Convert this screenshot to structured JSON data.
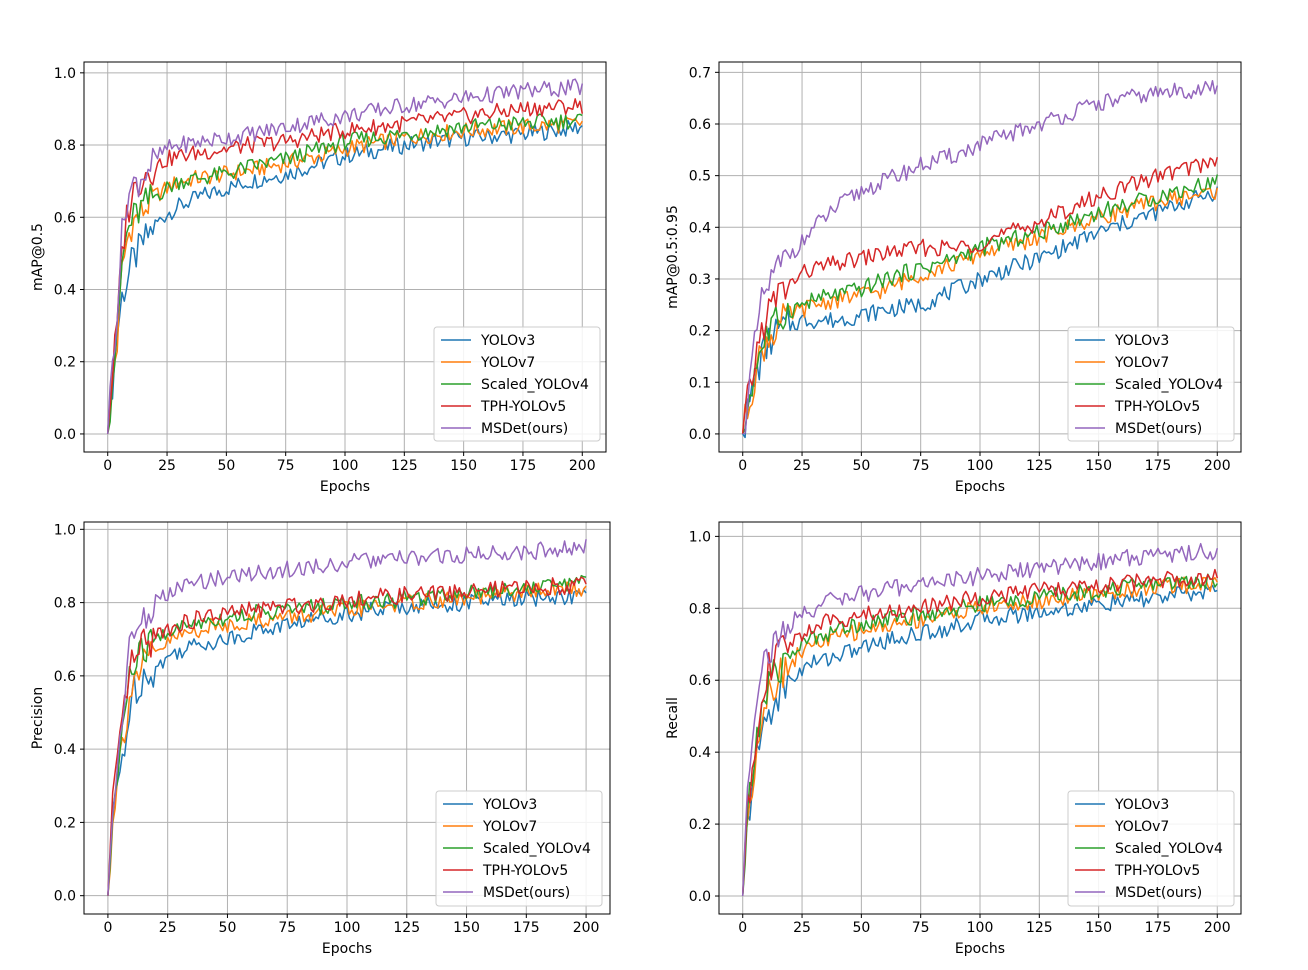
{
  "colors": {
    "YOLOv3": "#1f77b4",
    "YOLOv7": "#ff7f0e",
    "Scaled_YOLOv4": "#2ca02c",
    "TPH-YOLOv5": "#d62728",
    "MSDet(ours)": "#9467bd"
  },
  "chart_data": [
    {
      "type": "line",
      "id": "map50",
      "xlabel": "Epochs",
      "ylabel": "mAP@0.5",
      "xlim": [
        -10,
        210
      ],
      "ylim": [
        -0.05,
        1.03
      ],
      "xticks": [
        0,
        25,
        50,
        75,
        100,
        125,
        150,
        175,
        200
      ],
      "yticks": [
        "0.0",
        "0.2",
        "0.4",
        "0.6",
        "0.8",
        "1.0"
      ],
      "grid": true,
      "legend": "lower-right",
      "series": [
        {
          "name": "YOLOv3",
          "x": [
            0,
            2,
            4,
            6,
            8,
            10,
            15,
            20,
            25,
            30,
            40,
            50,
            60,
            75,
            90,
            100,
            125,
            150,
            175,
            200
          ],
          "values": [
            0.0,
            0.14,
            0.28,
            0.38,
            0.42,
            0.47,
            0.53,
            0.58,
            0.61,
            0.63,
            0.66,
            0.68,
            0.7,
            0.72,
            0.75,
            0.77,
            0.8,
            0.82,
            0.83,
            0.85
          ]
        },
        {
          "name": "YOLOv7",
          "x": [
            0,
            2,
            4,
            6,
            8,
            10,
            15,
            20,
            25,
            30,
            40,
            50,
            60,
            75,
            90,
            100,
            125,
            150,
            175,
            200
          ],
          "values": [
            0.0,
            0.16,
            0.25,
            0.45,
            0.53,
            0.58,
            0.62,
            0.66,
            0.68,
            0.7,
            0.71,
            0.72,
            0.73,
            0.75,
            0.77,
            0.79,
            0.82,
            0.84,
            0.85,
            0.86
          ]
        },
        {
          "name": "Scaled_YOLOv4",
          "x": [
            0,
            2,
            4,
            6,
            8,
            10,
            15,
            20,
            25,
            30,
            40,
            50,
            60,
            75,
            90,
            100,
            125,
            150,
            175,
            200
          ],
          "values": [
            0.0,
            0.15,
            0.27,
            0.47,
            0.55,
            0.59,
            0.63,
            0.66,
            0.68,
            0.7,
            0.71,
            0.72,
            0.74,
            0.76,
            0.79,
            0.81,
            0.83,
            0.85,
            0.86,
            0.87
          ]
        },
        {
          "name": "TPH-YOLOv5",
          "x": [
            0,
            2,
            4,
            6,
            8,
            10,
            15,
            20,
            25,
            30,
            40,
            50,
            60,
            75,
            90,
            100,
            125,
            150,
            175,
            200
          ],
          "values": [
            0.0,
            0.17,
            0.3,
            0.5,
            0.6,
            0.66,
            0.72,
            0.74,
            0.76,
            0.77,
            0.78,
            0.79,
            0.8,
            0.81,
            0.83,
            0.84,
            0.86,
            0.88,
            0.9,
            0.91
          ]
        },
        {
          "name": "MSDet(ours)",
          "x": [
            0,
            2,
            4,
            6,
            8,
            10,
            15,
            20,
            25,
            30,
            40,
            50,
            60,
            75,
            90,
            100,
            125,
            150,
            175,
            200
          ],
          "values": [
            0.0,
            0.2,
            0.35,
            0.55,
            0.65,
            0.68,
            0.72,
            0.76,
            0.79,
            0.8,
            0.81,
            0.82,
            0.83,
            0.85,
            0.87,
            0.88,
            0.91,
            0.93,
            0.95,
            0.96
          ]
        }
      ]
    },
    {
      "type": "line",
      "id": "map5095",
      "xlabel": "Epochs",
      "ylabel": "mAP@0.5:0.95",
      "xlim": [
        -10,
        210
      ],
      "ylim": [
        -0.035,
        0.72
      ],
      "xticks": [
        0,
        25,
        50,
        75,
        100,
        125,
        150,
        175,
        200
      ],
      "yticks": [
        "0.0",
        "0.1",
        "0.2",
        "0.3",
        "0.4",
        "0.5",
        "0.6",
        "0.7"
      ],
      "grid": true,
      "legend": "lower-right",
      "series": [
        {
          "name": "YOLOv3",
          "x": [
            0,
            2,
            4,
            6,
            8,
            10,
            15,
            20,
            25,
            30,
            40,
            50,
            60,
            75,
            90,
            100,
            125,
            150,
            175,
            200
          ],
          "values": [
            0.0,
            0.04,
            0.08,
            0.12,
            0.15,
            0.17,
            0.2,
            0.21,
            0.22,
            0.22,
            0.22,
            0.23,
            0.24,
            0.25,
            0.28,
            0.3,
            0.34,
            0.39,
            0.43,
            0.47
          ]
        },
        {
          "name": "YOLOv7",
          "x": [
            0,
            2,
            4,
            6,
            8,
            10,
            15,
            20,
            25,
            30,
            40,
            50,
            60,
            75,
            90,
            100,
            125,
            150,
            175,
            200
          ],
          "values": [
            0.0,
            0.05,
            0.09,
            0.13,
            0.16,
            0.18,
            0.21,
            0.23,
            0.24,
            0.25,
            0.26,
            0.27,
            0.28,
            0.31,
            0.33,
            0.35,
            0.38,
            0.42,
            0.45,
            0.47
          ]
        },
        {
          "name": "Scaled_YOLOv4",
          "x": [
            0,
            2,
            4,
            6,
            8,
            10,
            15,
            20,
            25,
            30,
            40,
            50,
            60,
            75,
            90,
            100,
            125,
            150,
            175,
            200
          ],
          "values": [
            0.0,
            0.05,
            0.1,
            0.14,
            0.17,
            0.19,
            0.22,
            0.24,
            0.25,
            0.26,
            0.27,
            0.28,
            0.3,
            0.32,
            0.34,
            0.36,
            0.39,
            0.43,
            0.46,
            0.49
          ]
        },
        {
          "name": "TPH-YOLOv5",
          "x": [
            0,
            2,
            4,
            6,
            8,
            10,
            15,
            20,
            25,
            30,
            40,
            50,
            60,
            75,
            90,
            100,
            125,
            150,
            175,
            200
          ],
          "values": [
            0.0,
            0.06,
            0.11,
            0.16,
            0.2,
            0.23,
            0.27,
            0.29,
            0.31,
            0.32,
            0.33,
            0.34,
            0.35,
            0.36,
            0.36,
            0.37,
            0.41,
            0.46,
            0.5,
            0.53
          ]
        },
        {
          "name": "MSDet(ours)",
          "x": [
            0,
            2,
            4,
            6,
            8,
            10,
            15,
            20,
            25,
            30,
            40,
            50,
            60,
            75,
            90,
            100,
            125,
            150,
            175,
            200
          ],
          "values": [
            0.0,
            0.07,
            0.13,
            0.2,
            0.25,
            0.28,
            0.32,
            0.35,
            0.37,
            0.4,
            0.44,
            0.47,
            0.49,
            0.52,
            0.54,
            0.56,
            0.6,
            0.64,
            0.66,
            0.67
          ]
        }
      ]
    },
    {
      "type": "line",
      "id": "precision",
      "xlabel": "Epochs",
      "ylabel": "Precision",
      "xlim": [
        -10,
        210
      ],
      "ylim": [
        -0.05,
        1.02
      ],
      "xticks": [
        0,
        25,
        50,
        75,
        100,
        125,
        150,
        175,
        200
      ],
      "yticks": [
        "0.0",
        "0.2",
        "0.4",
        "0.6",
        "0.8",
        "1.0"
      ],
      "grid": true,
      "legend": "lower-right",
      "series": [
        {
          "name": "YOLOv3",
          "x": [
            0,
            2,
            4,
            6,
            8,
            10,
            15,
            20,
            25,
            30,
            40,
            50,
            60,
            75,
            90,
            100,
            125,
            150,
            175,
            200
          ],
          "values": [
            0.0,
            0.2,
            0.3,
            0.38,
            0.45,
            0.55,
            0.6,
            0.62,
            0.65,
            0.67,
            0.69,
            0.7,
            0.72,
            0.74,
            0.76,
            0.77,
            0.79,
            0.8,
            0.81,
            0.82
          ]
        },
        {
          "name": "YOLOv7",
          "x": [
            0,
            2,
            4,
            6,
            8,
            10,
            15,
            20,
            25,
            30,
            40,
            50,
            60,
            75,
            90,
            100,
            125,
            150,
            175,
            200
          ],
          "values": [
            0.0,
            0.22,
            0.32,
            0.42,
            0.5,
            0.58,
            0.63,
            0.66,
            0.69,
            0.71,
            0.73,
            0.74,
            0.75,
            0.76,
            0.77,
            0.78,
            0.8,
            0.81,
            0.83,
            0.84
          ]
        },
        {
          "name": "Scaled_YOLOv4",
          "x": [
            0,
            2,
            4,
            6,
            8,
            10,
            15,
            20,
            25,
            30,
            40,
            50,
            60,
            75,
            90,
            100,
            125,
            150,
            175,
            200
          ],
          "values": [
            0.0,
            0.21,
            0.33,
            0.45,
            0.55,
            0.62,
            0.67,
            0.7,
            0.72,
            0.73,
            0.75,
            0.76,
            0.77,
            0.78,
            0.79,
            0.8,
            0.81,
            0.83,
            0.84,
            0.86
          ]
        },
        {
          "name": "TPH-YOLOv5",
          "x": [
            0,
            2,
            4,
            6,
            8,
            10,
            15,
            20,
            25,
            30,
            40,
            50,
            60,
            75,
            90,
            100,
            125,
            150,
            175,
            200
          ],
          "values": [
            0.0,
            0.25,
            0.34,
            0.46,
            0.57,
            0.63,
            0.68,
            0.71,
            0.73,
            0.74,
            0.76,
            0.77,
            0.78,
            0.79,
            0.8,
            0.81,
            0.82,
            0.83,
            0.84,
            0.85
          ]
        },
        {
          "name": "MSDet(ours)",
          "x": [
            0,
            2,
            4,
            6,
            8,
            10,
            15,
            20,
            25,
            30,
            40,
            50,
            60,
            75,
            90,
            100,
            125,
            150,
            175,
            200
          ],
          "values": [
            0.0,
            0.24,
            0.35,
            0.5,
            0.63,
            0.7,
            0.76,
            0.8,
            0.82,
            0.84,
            0.86,
            0.87,
            0.88,
            0.89,
            0.9,
            0.91,
            0.92,
            0.93,
            0.94,
            0.95
          ]
        }
      ]
    },
    {
      "type": "line",
      "id": "recall",
      "xlabel": "Epochs",
      "ylabel": "Recall",
      "xlim": [
        -10,
        210
      ],
      "ylim": [
        -0.05,
        1.04
      ],
      "xticks": [
        0,
        25,
        50,
        75,
        100,
        125,
        150,
        175,
        200
      ],
      "yticks": [
        "0.0",
        "0.2",
        "0.4",
        "0.6",
        "0.8",
        "1.0"
      ],
      "grid": true,
      "legend": "lower-right",
      "series": [
        {
          "name": "YOLOv3",
          "x": [
            0,
            2,
            4,
            6,
            8,
            10,
            15,
            20,
            25,
            30,
            40,
            50,
            60,
            75,
            90,
            100,
            125,
            150,
            175,
            200
          ],
          "values": [
            0.0,
            0.2,
            0.3,
            0.38,
            0.45,
            0.5,
            0.55,
            0.6,
            0.63,
            0.65,
            0.67,
            0.69,
            0.71,
            0.73,
            0.75,
            0.77,
            0.79,
            0.81,
            0.83,
            0.85
          ]
        },
        {
          "name": "YOLOv7",
          "x": [
            0,
            2,
            4,
            6,
            8,
            10,
            15,
            20,
            25,
            30,
            40,
            50,
            60,
            75,
            90,
            100,
            125,
            150,
            175,
            200
          ],
          "values": [
            0.0,
            0.22,
            0.32,
            0.42,
            0.5,
            0.56,
            0.61,
            0.65,
            0.68,
            0.7,
            0.72,
            0.74,
            0.75,
            0.77,
            0.79,
            0.8,
            0.82,
            0.84,
            0.86,
            0.87
          ]
        },
        {
          "name": "Scaled_YOLOv4",
          "x": [
            0,
            2,
            4,
            6,
            8,
            10,
            15,
            20,
            25,
            30,
            40,
            50,
            60,
            75,
            90,
            100,
            125,
            150,
            175,
            200
          ],
          "values": [
            0.0,
            0.21,
            0.33,
            0.43,
            0.52,
            0.58,
            0.63,
            0.67,
            0.7,
            0.72,
            0.74,
            0.76,
            0.77,
            0.78,
            0.8,
            0.81,
            0.83,
            0.85,
            0.87,
            0.88
          ]
        },
        {
          "name": "TPH-YOLOv5",
          "x": [
            0,
            2,
            4,
            6,
            8,
            10,
            15,
            20,
            25,
            30,
            40,
            50,
            60,
            75,
            90,
            100,
            125,
            150,
            175,
            200
          ],
          "values": [
            0.0,
            0.24,
            0.36,
            0.47,
            0.56,
            0.62,
            0.67,
            0.7,
            0.73,
            0.75,
            0.77,
            0.78,
            0.79,
            0.8,
            0.82,
            0.83,
            0.85,
            0.86,
            0.88,
            0.89
          ]
        },
        {
          "name": "MSDet(ours)",
          "x": [
            0,
            2,
            4,
            6,
            8,
            10,
            15,
            20,
            25,
            30,
            40,
            50,
            60,
            75,
            90,
            100,
            125,
            150,
            175,
            200
          ],
          "values": [
            0.0,
            0.3,
            0.45,
            0.58,
            0.64,
            0.67,
            0.71,
            0.75,
            0.79,
            0.8,
            0.83,
            0.84,
            0.85,
            0.87,
            0.88,
            0.89,
            0.91,
            0.93,
            0.95,
            0.96
          ]
        }
      ]
    }
  ]
}
